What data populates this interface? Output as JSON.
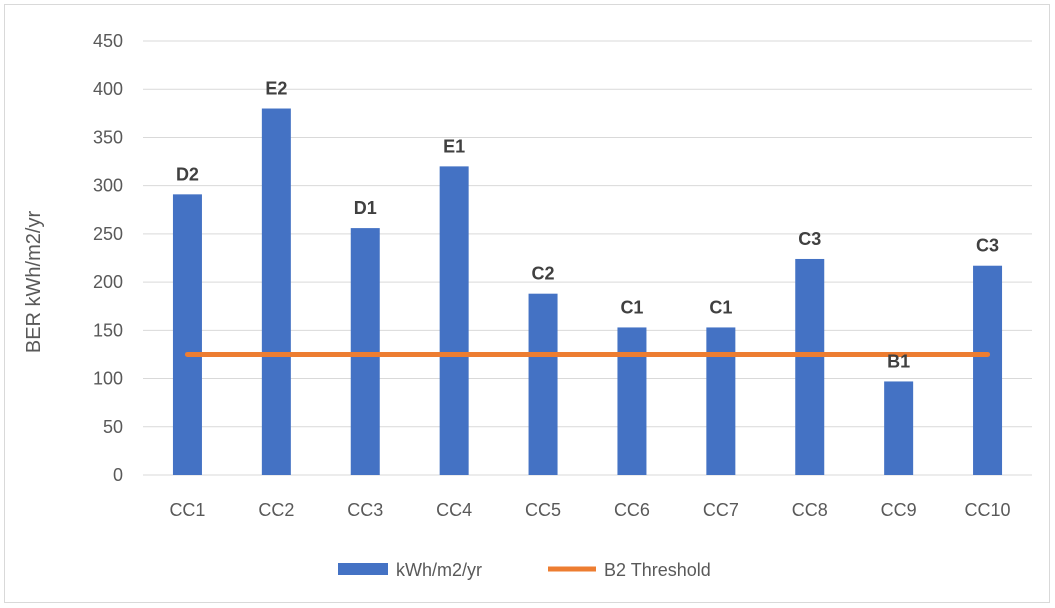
{
  "chart_data": {
    "type": "bar",
    "title": "",
    "xlabel": "",
    "ylabel": "BER kWh/m2/yr",
    "categories": [
      "CC1",
      "CC2",
      "CC3",
      "CC4",
      "CC5",
      "CC6",
      "CC7",
      "CC8",
      "CC9",
      "CC10"
    ],
    "series": [
      {
        "name": "kWh/m2/yr",
        "type": "bar",
        "color": "#4472C4",
        "values": [
          291,
          380,
          256,
          320,
          188,
          153,
          153,
          224,
          97,
          217
        ],
        "labels": [
          "D2",
          "E2",
          "D1",
          "E1",
          "C2",
          "C1",
          "C1",
          "C3",
          "B1",
          "C3"
        ]
      },
      {
        "name": "B2 Threshold",
        "type": "line",
        "color": "#ED7D31",
        "values": [
          125,
          125,
          125,
          125,
          125,
          125,
          125,
          125,
          125,
          125
        ]
      }
    ],
    "ylim": [
      0,
      450
    ],
    "yticks": [
      0,
      50,
      100,
      150,
      200,
      250,
      300,
      350,
      400,
      450
    ],
    "grid": true,
    "legend": "bottom"
  }
}
